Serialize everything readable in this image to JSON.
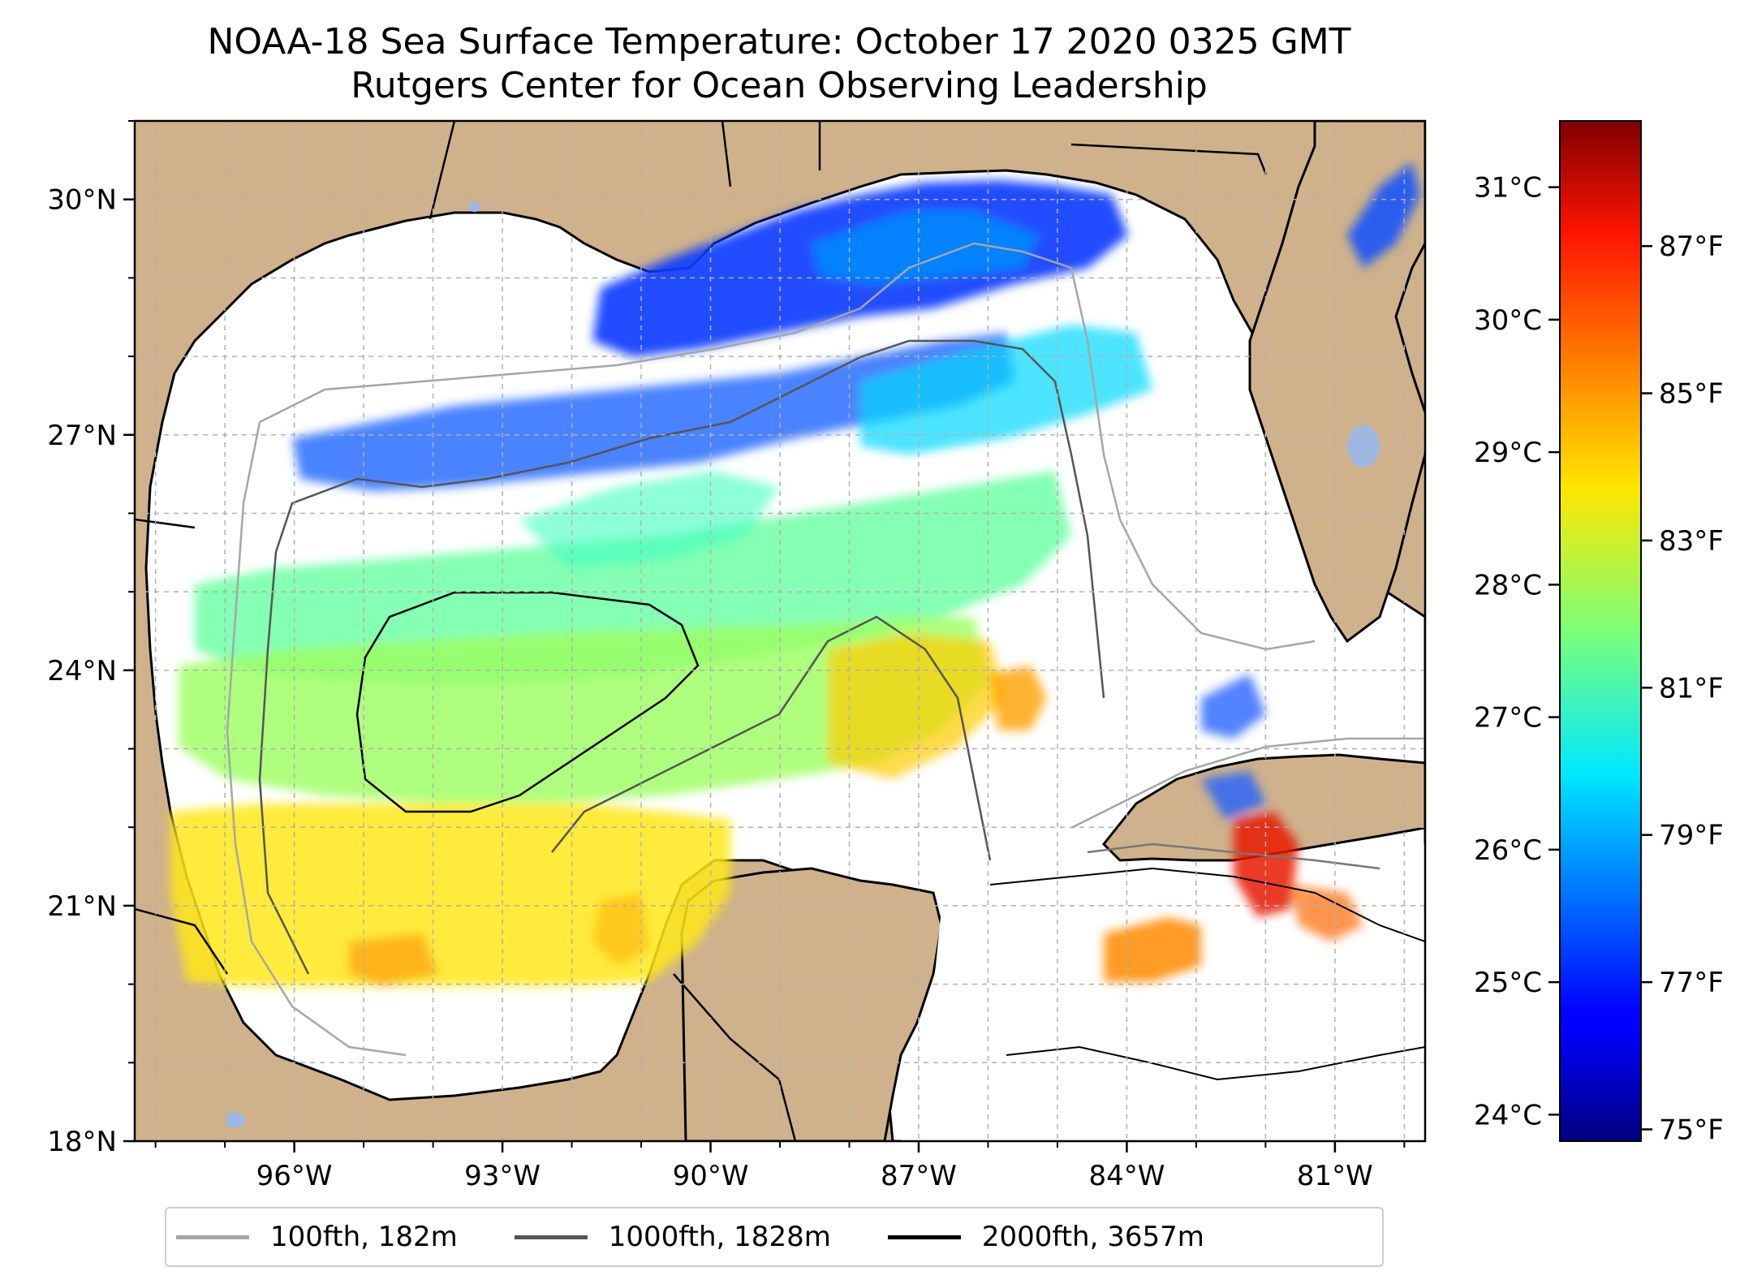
{
  "title": "NOAA-18 Sea Surface Temperature: October 17 2020 0325 GMT",
  "subtitle": "Rutgers Center for Ocean Observing Leadership",
  "map": {
    "lon_range": [
      -98.3,
      -79.7
    ],
    "lat_range": [
      18.0,
      31.0
    ],
    "lon_ticks": [
      {
        "value": -96,
        "label": "96°W"
      },
      {
        "value": -93,
        "label": "93°W"
      },
      {
        "value": -90,
        "label": "90°W"
      },
      {
        "value": -87,
        "label": "87°W"
      },
      {
        "value": -84,
        "label": "84°W"
      },
      {
        "value": -81,
        "label": "81°W"
      }
    ],
    "lat_ticks": [
      {
        "value": 30,
        "label": "30°N"
      },
      {
        "value": 27,
        "label": "27°N"
      },
      {
        "value": 24,
        "label": "24°N"
      },
      {
        "value": 21,
        "label": "21°N"
      },
      {
        "value": 18,
        "label": "18°N"
      }
    ],
    "land_color": "#cfb28b",
    "water_body_color": "#9db7e0",
    "gridlines": true
  },
  "colorbar": {
    "colormap": "jet",
    "min_c": 23.8,
    "max_c": 31.5,
    "celsius_ticks": [
      {
        "value": 24,
        "label": "24°C"
      },
      {
        "value": 25,
        "label": "25°C"
      },
      {
        "value": 26,
        "label": "26°C"
      },
      {
        "value": 27,
        "label": "27°C"
      },
      {
        "value": 28,
        "label": "28°C"
      },
      {
        "value": 29,
        "label": "29°C"
      },
      {
        "value": 30,
        "label": "30°C"
      },
      {
        "value": 31,
        "label": "31°C"
      }
    ],
    "fahrenheit_ticks": [
      {
        "value": 75,
        "label": "75°F"
      },
      {
        "value": 77,
        "label": "77°F"
      },
      {
        "value": 79,
        "label": "79°F"
      },
      {
        "value": 81,
        "label": "81°F"
      },
      {
        "value": 83,
        "label": "83°F"
      },
      {
        "value": 85,
        "label": "85°F"
      },
      {
        "value": 87,
        "label": "87°F"
      }
    ]
  },
  "legend": {
    "placement": "below",
    "items": [
      {
        "label": "100fth, 182m",
        "color": "#a6a6a6"
      },
      {
        "label": "1000fth, 1828m",
        "color": "#555555"
      },
      {
        "label": "2000fth, 3657m",
        "color": "#000000"
      }
    ]
  }
}
